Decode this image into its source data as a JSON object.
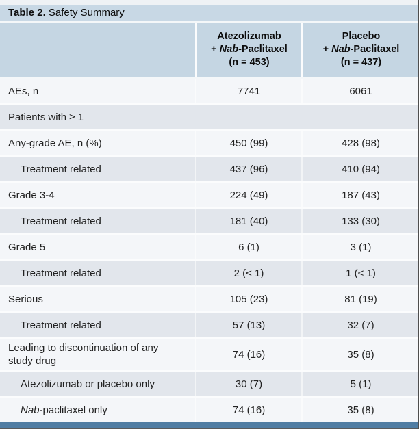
{
  "title": {
    "bold": "Table 2.",
    "rest": " Safety Summary"
  },
  "columns": [
    {
      "drug": "Atezolizumab",
      "combo_prefix": "+ ",
      "combo_italic": "Nab",
      "combo_suffix": "-Paclitaxel",
      "n": "(n = 453)"
    },
    {
      "drug": "Placebo",
      "combo_prefix": "+ ",
      "combo_italic": "Nab",
      "combo_suffix": "-Paclitaxel",
      "n": "(n = 437)"
    }
  ],
  "rows": [
    {
      "label": "AEs, n",
      "values": [
        "7741",
        "6061"
      ],
      "shade": "light"
    },
    {
      "label": "Patients with ≥ 1",
      "values": [],
      "section": true,
      "shade": "dark"
    },
    {
      "label": "Any-grade AE, n (%)",
      "values": [
        "450 (99)",
        "428 (98)"
      ],
      "shade": "light"
    },
    {
      "label": "Treatment related",
      "indent": true,
      "values": [
        "437 (96)",
        "410 (94)"
      ],
      "shade": "dark"
    },
    {
      "label": "Grade 3-4",
      "values": [
        "224 (49)",
        "187 (43)"
      ],
      "shade": "light"
    },
    {
      "label": "Treatment related",
      "indent": true,
      "values": [
        "181 (40)",
        "133 (30)"
      ],
      "shade": "dark"
    },
    {
      "label": "Grade 5",
      "values": [
        "6 (1)",
        "3 (1)"
      ],
      "shade": "light"
    },
    {
      "label": "Treatment related",
      "indent": true,
      "values": [
        "2 (< 1)",
        "1 (< 1)"
      ],
      "shade": "dark"
    },
    {
      "label": "Serious",
      "values": [
        "105 (23)",
        "81 (19)"
      ],
      "shade": "light"
    },
    {
      "label": "Treatment related",
      "indent": true,
      "values": [
        "57 (13)",
        "32 (7)"
      ],
      "shade": "dark"
    },
    {
      "label": "Leading to discontinuation of any study drug",
      "values": [
        "74 (16)",
        "35 (8)"
      ],
      "shade": "light",
      "tall": true
    },
    {
      "label": "Atezolizumab or placebo only",
      "indent": true,
      "values": [
        "30 (7)",
        "5 (1)"
      ],
      "shade": "dark"
    },
    {
      "label_italic_lead": "Nab",
      "label": "-paclitaxel only",
      "indent": true,
      "values": [
        "74 (16)",
        "35 (8)"
      ],
      "shade": "light",
      "last": true
    }
  ],
  "colors": {
    "header_bg": "#c5d6e3",
    "title_bg": "#c8d8e5",
    "row_light": "#f4f6f9",
    "row_dark": "#e2e6ec",
    "accent_bar": "#507da3"
  }
}
